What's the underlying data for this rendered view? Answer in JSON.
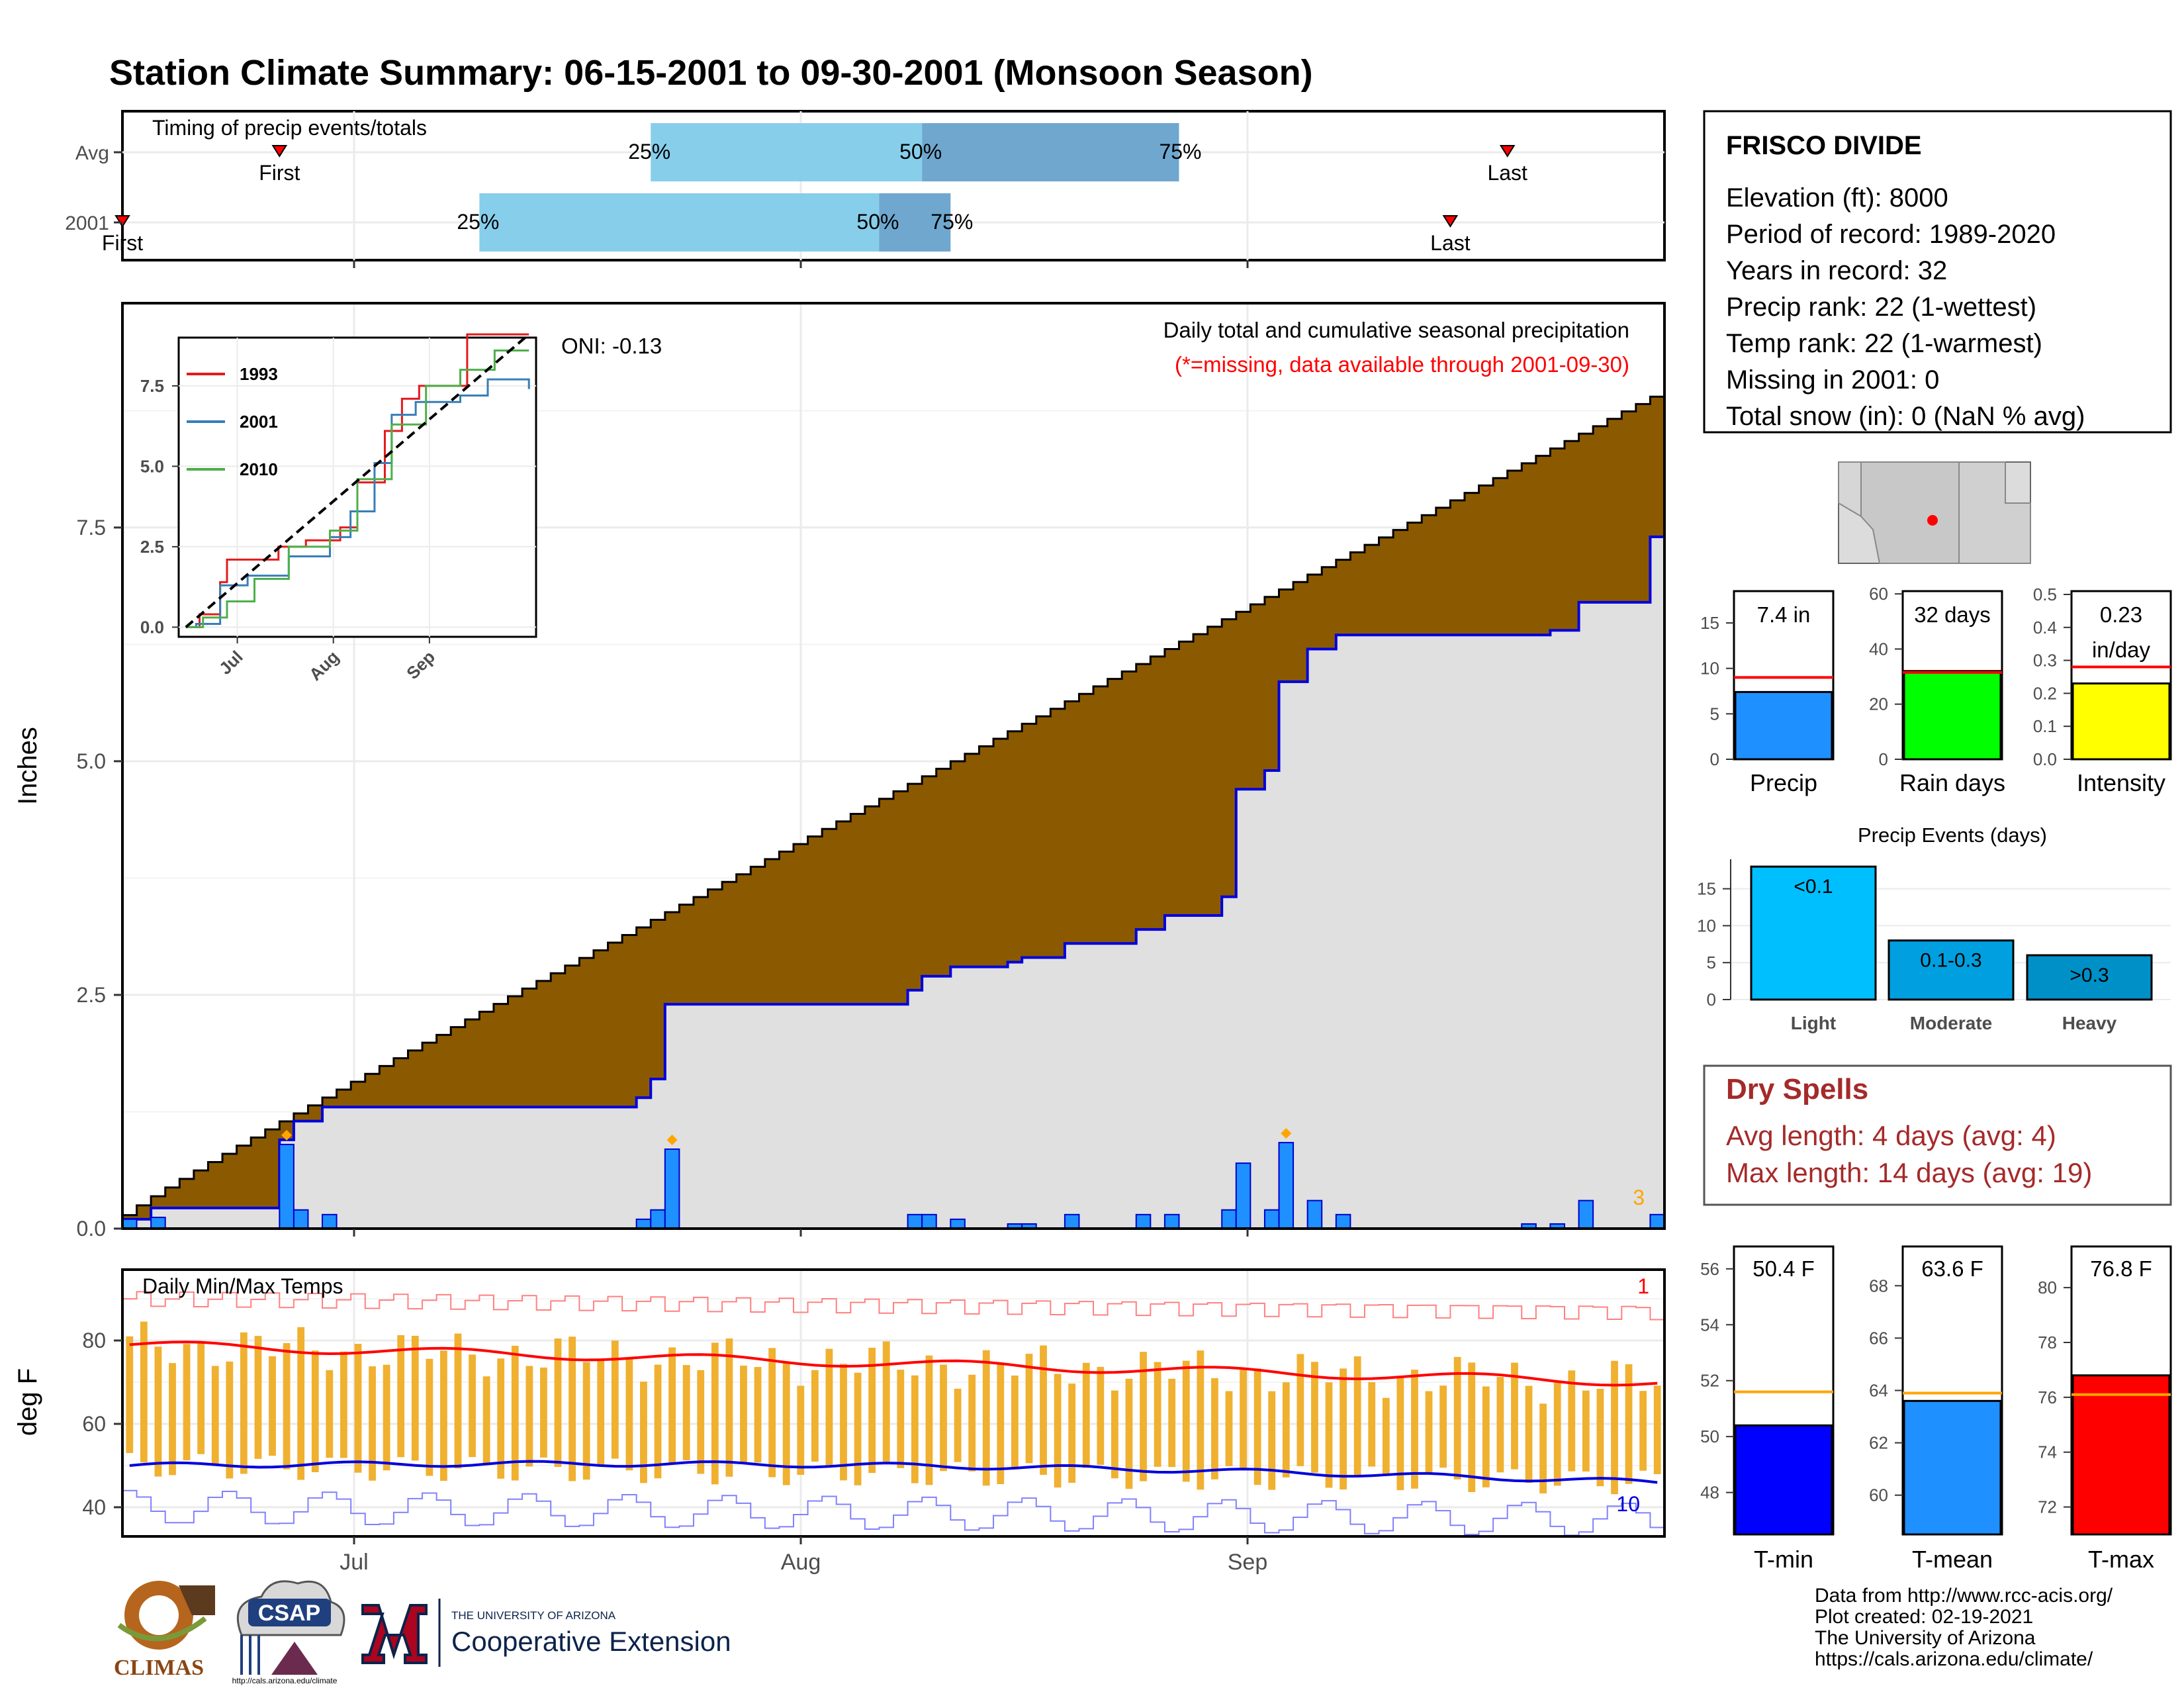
{
  "title": "Station Climate Summary: 06-15-2001 to 09-30-2001 (Monsoon Season)",
  "colors": {
    "title": "#ff0000",
    "light_blue": "#87ceeb",
    "steel_blue": "#6fa7cf",
    "precip_bar": "#1e90ff",
    "above_avg": "#008000",
    "below_avg": "#8b5a00",
    "normal_fill": "#e0e0e0",
    "temp_bar": "#f0b030",
    "tmax_line": "#ff0000",
    "tmin_line": "#0000dd",
    "dry_spell": "#a52a2a"
  },
  "timing": {
    "title": "Timing of precip events/totals",
    "rows": [
      "Avg",
      "2001"
    ],
    "avg": {
      "first": "First",
      "last": "Last",
      "p25": "25%",
      "p50": "50%",
      "p75": "75%",
      "first_date": "2001-06-26",
      "p25_date": "2001-07-22",
      "p50_date": "2001-08-10",
      "p75_date": "2001-08-28",
      "last_date": "2001-09-20"
    },
    "y2001": {
      "first": "First",
      "last": "Last",
      "p25": "25%",
      "p50": "50%",
      "p75": "75%",
      "first_date": "2001-06-15",
      "p25_date": "2001-07-10",
      "p50_date": "2001-08-07",
      "p75_date": "2001-08-12",
      "last_date": "2001-09-16"
    }
  },
  "precip_panel": {
    "title": "Daily total and cumulative seasonal precipitation",
    "subtitle": "(*=missing, data available through 2001-09-30)",
    "ylabel": "Inches",
    "oni": "ONI: -0.13",
    "corner_count": "3",
    "yticks": [
      "0.0",
      "2.5",
      "5.0",
      "7.5"
    ],
    "ylim": [
      0,
      9.9
    ]
  },
  "inset": {
    "series_names": [
      "1993",
      "2001",
      "2010"
    ],
    "series_colors": [
      "#e41a1c",
      "#377eb8",
      "#4daf4a"
    ],
    "yticks": [
      "0.0",
      "2.5",
      "5.0",
      "7.5"
    ],
    "xticks": [
      "Jul",
      "Aug",
      "Sep"
    ]
  },
  "temp_panel": {
    "title": "Daily Min/Max Temps",
    "ylabel": "deg F",
    "yticks": [
      "40",
      "60",
      "80"
    ],
    "ylim": [
      33,
      97
    ],
    "count_max": "1",
    "count_min": "10",
    "xticks": [
      "Jul",
      "Aug",
      "Sep"
    ]
  },
  "station": {
    "name": "FRISCO DIVIDE",
    "lines": [
      "Elevation (ft): 8000",
      "Period of record: 1989-2020",
      "Years in record: 32",
      "Precip rank: 22 (1-wettest)",
      "Temp rank: 22 (1-warmest)",
      "Missing in 2001: 0",
      "Total snow (in): 0 (NaN % avg)"
    ]
  },
  "mini_bars": [
    {
      "label": "Precip",
      "value_text": "7.4 in",
      "value": 7.4,
      "avg": 9.0,
      "ymax": 18.5,
      "ticks": [
        "0",
        "5",
        "10",
        "15"
      ],
      "tickvals": [
        0,
        5,
        10,
        15
      ],
      "color": "#1e90ff"
    },
    {
      "label": "Rain days",
      "value_text": "32 days",
      "value": 32,
      "avg": 31.5,
      "ymax": 61,
      "ticks": [
        "0",
        "20",
        "40",
        "60"
      ],
      "tickvals": [
        0,
        20,
        40,
        60
      ],
      "color": "#00ff00"
    },
    {
      "label": "Intensity",
      "value_text": "0.23 in/day",
      "value_line1": "0.23",
      "value_line2": "in/day",
      "value": 0.23,
      "avg": 0.28,
      "ymax": 0.51,
      "ticks": [
        "0.0",
        "0.1",
        "0.2",
        "0.3",
        "0.4",
        "0.5"
      ],
      "tickvals": [
        0,
        0.1,
        0.2,
        0.3,
        0.4,
        0.5
      ],
      "color": "#ffff00"
    }
  ],
  "events": {
    "title": "Precip Events (days)",
    "categories": [
      "Light",
      "Moderate",
      "Heavy"
    ],
    "labels": [
      "<0.1",
      "0.1-0.3",
      ">0.3"
    ],
    "values": [
      18,
      8,
      6
    ],
    "colors": [
      "#00bfff",
      "#00a0e0",
      "#0090c8"
    ],
    "ticks": [
      "0",
      "5",
      "10",
      "15"
    ]
  },
  "dry_spells": {
    "title": "Dry Spells",
    "avg": "Avg length: 4 days (avg: 4)",
    "max": "Max length: 14 days (avg: 19)"
  },
  "temp_bars": [
    {
      "label": "T-min",
      "value_text": "50.4 F",
      "value": 50.4,
      "avg": 51.6,
      "ymin": 46.5,
      "ymax": 56.8,
      "ticks": [
        "48",
        "50",
        "52",
        "54",
        "56"
      ],
      "tickvals": [
        48,
        50,
        52,
        54,
        56
      ],
      "color": "#0000ff"
    },
    {
      "label": "T-mean",
      "value_text": "63.6 F",
      "value": 63.6,
      "avg": 63.9,
      "ymin": 58.5,
      "ymax": 69.5,
      "ticks": [
        "60",
        "62",
        "64",
        "66",
        "68"
      ],
      "tickvals": [
        60,
        62,
        64,
        66,
        68
      ],
      "color": "#1e90ff"
    },
    {
      "label": "T-max",
      "value_text": "76.8 F",
      "value": 76.8,
      "avg": 76.1,
      "ymin": 71.0,
      "ymax": 81.5,
      "ticks": [
        "72",
        "74",
        "76",
        "78",
        "80"
      ],
      "tickvals": [
        72,
        74,
        76,
        78,
        80
      ],
      "color": "#ff0000"
    }
  ],
  "footer": {
    "lines": [
      "Data from http://www.rcc-acis.org/",
      "Plot created: 02-19-2021",
      "The University of Arizona",
      "https://cals.arizona.edu/climate/"
    ],
    "logo_climas": "CLIMAS",
    "logo_csap": "CSAP",
    "logo_csap_url": "http://cals.arizona.edu/climate",
    "logo_ua_small": "THE UNIVERSITY OF ARIZONA",
    "logo_ua_big": "Cooperative Extension"
  },
  "chart_data": {
    "type": "area",
    "title": "Daily total and cumulative seasonal precipitation",
    "ylabel": "Inches",
    "x_start": "2001-06-15",
    "x_end": "2001-09-30",
    "xticks": [
      "Jul",
      "Aug",
      "Sep"
    ],
    "ylim": [
      0,
      9.9
    ],
    "series": [
      {
        "name": "2001 cumulative",
        "points": [
          [
            "2001-06-15",
            0.1
          ],
          [
            "2001-06-17",
            0.22
          ],
          [
            "2001-06-25",
            0.22
          ],
          [
            "2001-06-26",
            0.95
          ],
          [
            "2001-06-27",
            1.15
          ],
          [
            "2001-06-29",
            1.3
          ],
          [
            "2001-07-20",
            1.3
          ],
          [
            "2001-07-21",
            1.4
          ],
          [
            "2001-07-22",
            1.6
          ],
          [
            "2001-07-23",
            2.4
          ],
          [
            "2001-08-08",
            2.4
          ],
          [
            "2001-08-09",
            2.55
          ],
          [
            "2001-08-10",
            2.7
          ],
          [
            "2001-08-12",
            2.8
          ],
          [
            "2001-08-15",
            2.8
          ],
          [
            "2001-08-16",
            2.85
          ],
          [
            "2001-08-17",
            2.9
          ],
          [
            "2001-08-20",
            3.05
          ],
          [
            "2001-08-25",
            3.2
          ],
          [
            "2001-08-27",
            3.35
          ],
          [
            "2001-08-31",
            3.55
          ],
          [
            "2001-09-01",
            4.7
          ],
          [
            "2001-09-03",
            4.9
          ],
          [
            "2001-09-04",
            5.85
          ],
          [
            "2001-09-06",
            6.2
          ],
          [
            "2001-09-08",
            6.35
          ],
          [
            "2001-09-21",
            6.35
          ],
          [
            "2001-09-23",
            6.4
          ],
          [
            "2001-09-25",
            6.7
          ],
          [
            "2001-09-30",
            6.85
          ],
          [
            "2001-09-30",
            7.4
          ]
        ]
      },
      {
        "name": "Average cumulative",
        "start": 0.0,
        "end": 8.9
      },
      {
        "name": "Daily precip",
        "points": [
          [
            "2001-06-15",
            0.1
          ],
          [
            "2001-06-17",
            0.12
          ],
          [
            "2001-06-26",
            0.9
          ],
          [
            "2001-06-27",
            0.2
          ],
          [
            "2001-06-29",
            0.15
          ],
          [
            "2001-07-21",
            0.1
          ],
          [
            "2001-07-22",
            0.2
          ],
          [
            "2001-07-23",
            0.85
          ],
          [
            "2001-08-09",
            0.15
          ],
          [
            "2001-08-10",
            0.15
          ],
          [
            "2001-08-12",
            0.1
          ],
          [
            "2001-08-16",
            0.05
          ],
          [
            "2001-08-17",
            0.05
          ],
          [
            "2001-08-20",
            0.15
          ],
          [
            "2001-08-25",
            0.15
          ],
          [
            "2001-08-27",
            0.15
          ],
          [
            "2001-08-31",
            0.2
          ],
          [
            "2001-09-01",
            0.7
          ],
          [
            "2001-09-03",
            0.2
          ],
          [
            "2001-09-04",
            0.92
          ],
          [
            "2001-09-06",
            0.3
          ],
          [
            "2001-09-08",
            0.15
          ],
          [
            "2001-09-21",
            0.05
          ],
          [
            "2001-09-23",
            0.05
          ],
          [
            "2001-09-25",
            0.3
          ],
          [
            "2001-09-30",
            0.15
          ]
        ]
      }
    ],
    "temps": {
      "tmax_avg_start": 79,
      "tmax_avg_end": 70,
      "tmin_avg_start": 50,
      "tmin_avg_end": 46,
      "record_max_approx": 90,
      "record_min_approx": 40
    }
  }
}
